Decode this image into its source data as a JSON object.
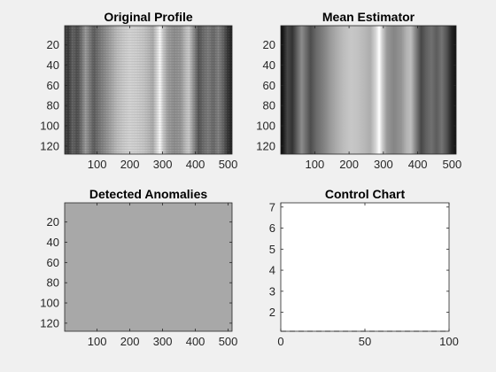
{
  "chart_data": [
    {
      "type": "heatmap",
      "title": "Original Profile",
      "xlim": [
        1,
        512
      ],
      "ylim": [
        1,
        128
      ],
      "xticks": [
        100,
        200,
        300,
        400,
        500
      ],
      "yticks": [
        20,
        40,
        60,
        80,
        100,
        120
      ],
      "colormap": "gray",
      "column_profile": [
        {
          "x": 1,
          "v": 0.28
        },
        {
          "x": 12,
          "v": 0.22
        },
        {
          "x": 25,
          "v": 0.38
        },
        {
          "x": 40,
          "v": 0.3
        },
        {
          "x": 55,
          "v": 0.47
        },
        {
          "x": 65,
          "v": 0.6
        },
        {
          "x": 75,
          "v": 0.5
        },
        {
          "x": 90,
          "v": 0.36
        },
        {
          "x": 105,
          "v": 0.45
        },
        {
          "x": 120,
          "v": 0.52
        },
        {
          "x": 140,
          "v": 0.62
        },
        {
          "x": 160,
          "v": 0.72
        },
        {
          "x": 180,
          "v": 0.78
        },
        {
          "x": 200,
          "v": 0.82
        },
        {
          "x": 220,
          "v": 0.8
        },
        {
          "x": 240,
          "v": 0.77
        },
        {
          "x": 255,
          "v": 0.72
        },
        {
          "x": 270,
          "v": 0.66
        },
        {
          "x": 285,
          "v": 0.86
        },
        {
          "x": 292,
          "v": 0.97
        },
        {
          "x": 300,
          "v": 0.8
        },
        {
          "x": 315,
          "v": 0.62
        },
        {
          "x": 335,
          "v": 0.55
        },
        {
          "x": 355,
          "v": 0.58
        },
        {
          "x": 370,
          "v": 0.72
        },
        {
          "x": 380,
          "v": 0.78
        },
        {
          "x": 395,
          "v": 0.55
        },
        {
          "x": 410,
          "v": 0.32
        },
        {
          "x": 425,
          "v": 0.42
        },
        {
          "x": 440,
          "v": 0.48
        },
        {
          "x": 455,
          "v": 0.4
        },
        {
          "x": 470,
          "v": 0.5
        },
        {
          "x": 485,
          "v": 0.38
        },
        {
          "x": 498,
          "v": 0.22
        },
        {
          "x": 512,
          "v": 0.12
        }
      ]
    },
    {
      "type": "heatmap",
      "title": "Mean Estimator",
      "xlim": [
        1,
        512
      ],
      "ylim": [
        1,
        128
      ],
      "xticks": [
        100,
        200,
        300,
        400,
        500
      ],
      "yticks": [
        20,
        40,
        60,
        80,
        100,
        120
      ],
      "colormap": "gray",
      "column_profile": [
        {
          "x": 1,
          "v": 0.05
        },
        {
          "x": 8,
          "v": 0.1
        },
        {
          "x": 20,
          "v": 0.28
        },
        {
          "x": 35,
          "v": 0.2
        },
        {
          "x": 50,
          "v": 0.4
        },
        {
          "x": 62,
          "v": 0.55
        },
        {
          "x": 72,
          "v": 0.45
        },
        {
          "x": 88,
          "v": 0.3
        },
        {
          "x": 105,
          "v": 0.42
        },
        {
          "x": 125,
          "v": 0.5
        },
        {
          "x": 145,
          "v": 0.6
        },
        {
          "x": 165,
          "v": 0.68
        },
        {
          "x": 185,
          "v": 0.74
        },
        {
          "x": 205,
          "v": 0.78
        },
        {
          "x": 225,
          "v": 0.76
        },
        {
          "x": 245,
          "v": 0.72
        },
        {
          "x": 262,
          "v": 0.68
        },
        {
          "x": 278,
          "v": 0.84
        },
        {
          "x": 288,
          "v": 1.0
        },
        {
          "x": 296,
          "v": 0.82
        },
        {
          "x": 310,
          "v": 0.6
        },
        {
          "x": 330,
          "v": 0.52
        },
        {
          "x": 352,
          "v": 0.58
        },
        {
          "x": 368,
          "v": 0.7
        },
        {
          "x": 380,
          "v": 0.74
        },
        {
          "x": 395,
          "v": 0.5
        },
        {
          "x": 410,
          "v": 0.28
        },
        {
          "x": 425,
          "v": 0.38
        },
        {
          "x": 440,
          "v": 0.44
        },
        {
          "x": 455,
          "v": 0.36
        },
        {
          "x": 470,
          "v": 0.45
        },
        {
          "x": 485,
          "v": 0.32
        },
        {
          "x": 498,
          "v": 0.15
        },
        {
          "x": 512,
          "v": 0.06
        }
      ]
    },
    {
      "type": "heatmap",
      "title": "Detected Anomalies",
      "xlim": [
        1,
        512
      ],
      "ylim": [
        1,
        128
      ],
      "xticks": [
        100,
        200,
        300,
        400,
        500
      ],
      "yticks": [
        20,
        40,
        60,
        80,
        100,
        120
      ],
      "fill_color": "#a8a8a8"
    },
    {
      "type": "line",
      "title": "Control Chart",
      "xlim": [
        0,
        100
      ],
      "ylim": [
        1.1,
        7.2
      ],
      "xticks": [
        0,
        50,
        100
      ],
      "yticks": [
        2,
        3,
        4,
        5,
        6,
        7
      ],
      "series": [
        {
          "style": "dashed",
          "color": "#000000",
          "x": [
            0,
            100
          ],
          "y": [
            1.1,
            1.1
          ]
        }
      ]
    }
  ],
  "colors": {
    "figure_background": "#f0f0f0",
    "axes_background": "#ffffff",
    "axis_color": "#262626"
  }
}
